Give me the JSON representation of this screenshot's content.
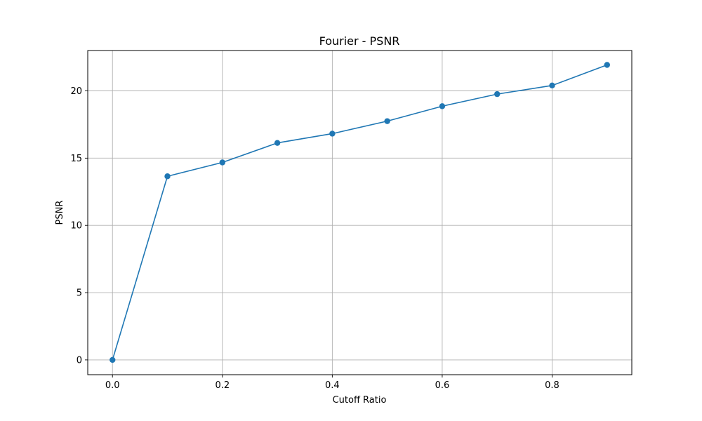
{
  "chart_data": {
    "type": "line",
    "title": "Fourier - PSNR",
    "xlabel": "Cutoff Ratio",
    "ylabel": "PSNR",
    "xlim": [
      -0.045,
      0.945
    ],
    "ylim": [
      -1.1,
      23.0
    ],
    "xticks": [
      0.0,
      0.2,
      0.4,
      0.6,
      0.8
    ],
    "xtick_labels": [
      "0.0",
      "0.2",
      "0.4",
      "0.6",
      "0.8"
    ],
    "yticks": [
      0,
      5,
      10,
      15,
      20
    ],
    "ytick_labels": [
      "0",
      "5",
      "10",
      "15",
      "20"
    ],
    "grid": true,
    "legend": "none",
    "series": [
      {
        "color": "#1f77b4",
        "marker": "circle",
        "x": [
          0.0,
          0.1,
          0.2,
          0.3,
          0.4,
          0.5,
          0.6,
          0.7,
          0.8,
          0.9
        ],
        "y": [
          0.0,
          13.65,
          14.68,
          16.13,
          16.82,
          17.75,
          18.86,
          19.76,
          20.4,
          21.93
        ]
      }
    ]
  }
}
